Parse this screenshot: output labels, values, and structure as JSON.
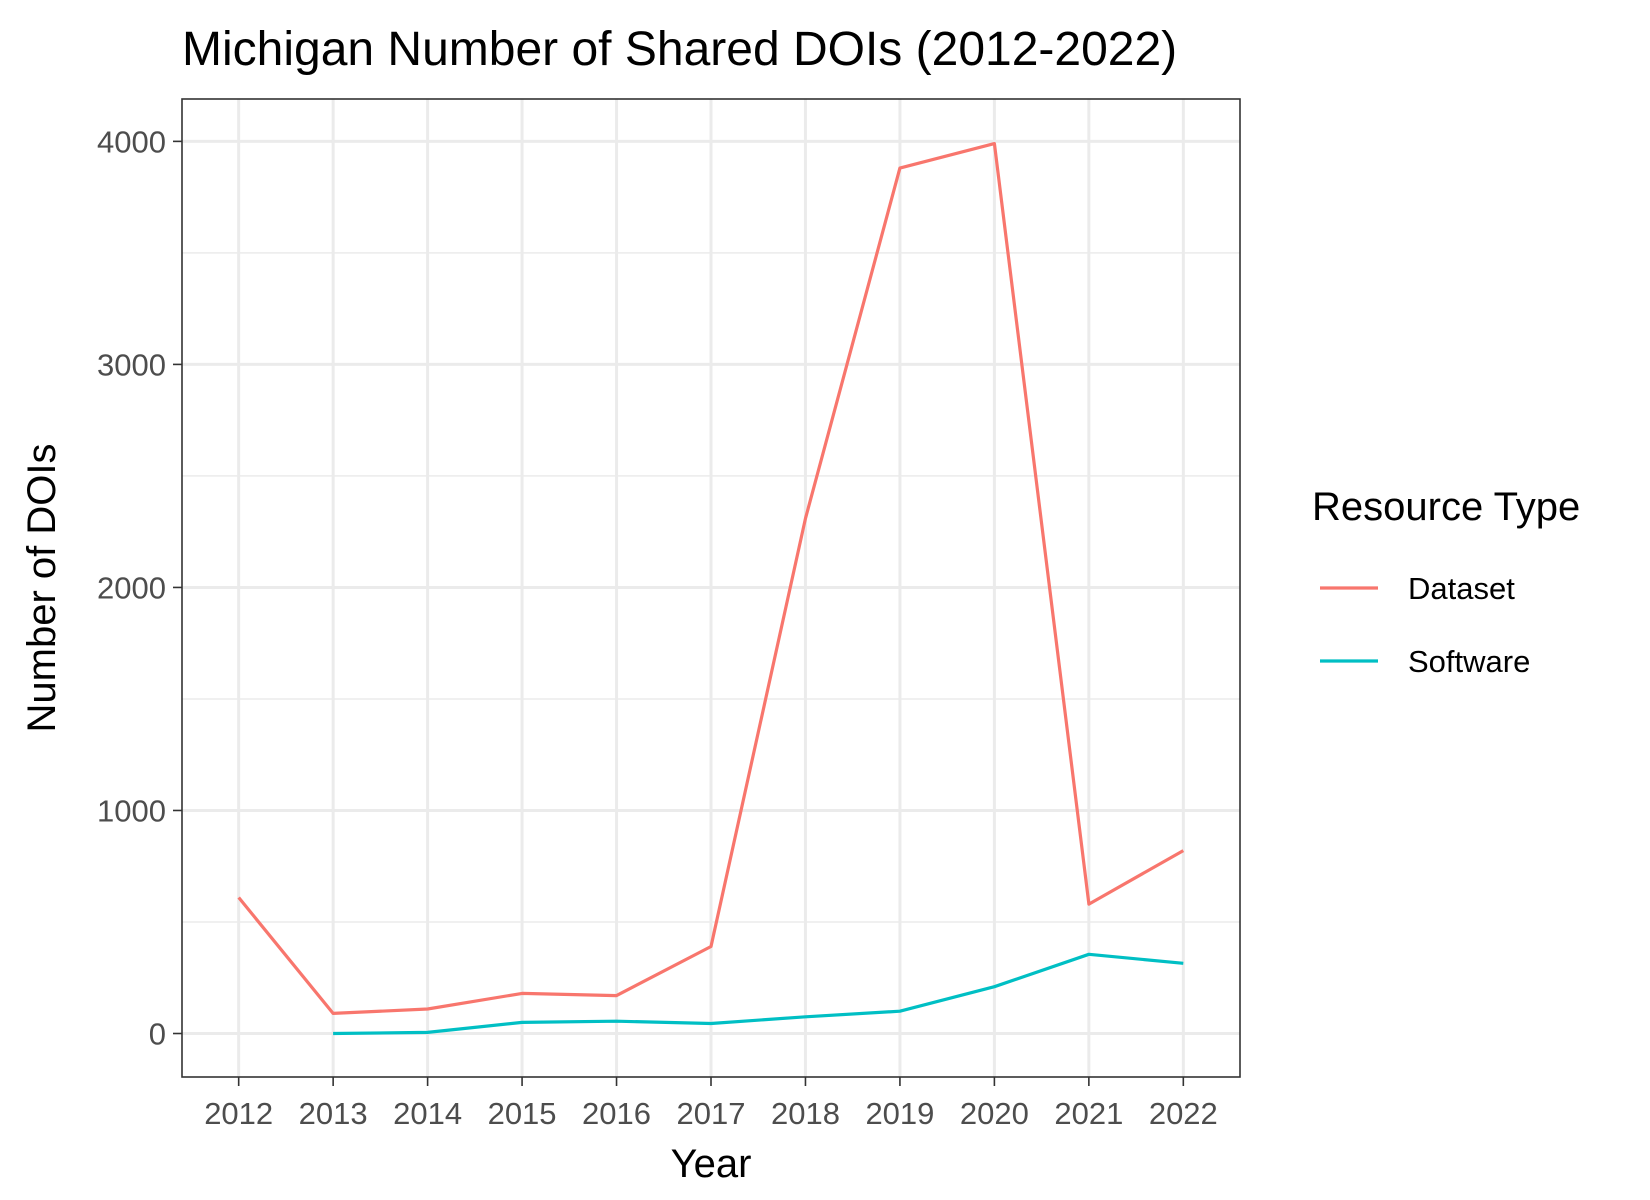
{
  "chart_data": {
    "type": "line",
    "title": "Michigan Number of Shared DOIs (2012-2022)",
    "xlabel": "Year",
    "ylabel": "Number of DOIs",
    "x": [
      2012,
      2013,
      2014,
      2015,
      2016,
      2017,
      2018,
      2019,
      2020,
      2021,
      2022
    ],
    "x_tick_labels": [
      "2012",
      "2013",
      "2014",
      "2015",
      "2016",
      "2017",
      "2018",
      "2019",
      "2020",
      "2021",
      "2022"
    ],
    "y_ticks": [
      0,
      1000,
      2000,
      3000,
      4000
    ],
    "y_tick_labels": [
      "0",
      "1000",
      "2000",
      "3000",
      "4000"
    ],
    "ylim": [
      -195,
      4190
    ],
    "grid": true,
    "legend": {
      "title": "Resource Type",
      "position": "right"
    },
    "series": [
      {
        "name": "Dataset",
        "color": "#F8766D",
        "values": [
          610,
          90,
          110,
          180,
          170,
          390,
          2310,
          3880,
          3990,
          580,
          820
        ]
      },
      {
        "name": "Software",
        "color": "#00BFC4",
        "values": [
          null,
          0,
          5,
          50,
          55,
          45,
          75,
          100,
          210,
          355,
          315
        ]
      }
    ]
  }
}
